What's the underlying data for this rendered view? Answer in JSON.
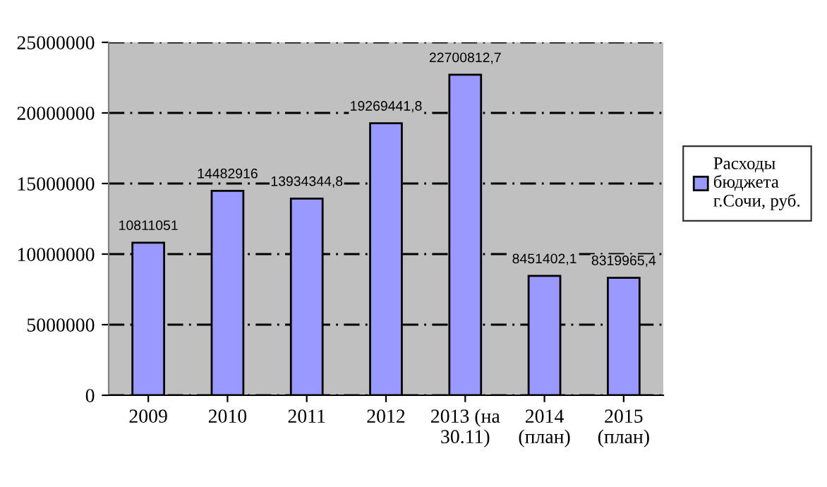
{
  "chart_data": {
    "type": "bar",
    "categories": [
      "2009",
      "2010",
      "2011",
      "2012",
      "2013 (на\n30.11)",
      "2014\n(план)",
      "2015\n(план)"
    ],
    "series": [
      {
        "name": "Расходы\nбюджета\nг.Сочи, руб.",
        "color": "#9999ff",
        "values": [
          10811051,
          14482916,
          13934344.8,
          19269441.8,
          22700812.7,
          8451402.1,
          8319965.4
        ],
        "value_labels": [
          "10811051",
          "14482916",
          "13934344,8",
          "19269441,8",
          "22700812,7",
          "8451402,1",
          "8319965,4"
        ]
      }
    ],
    "ylim": [
      0,
      25000000
    ],
    "yticks": [
      0,
      5000000,
      10000000,
      15000000,
      20000000,
      25000000
    ],
    "grid": "y",
    "line_style": "dashed",
    "legend": "right"
  }
}
